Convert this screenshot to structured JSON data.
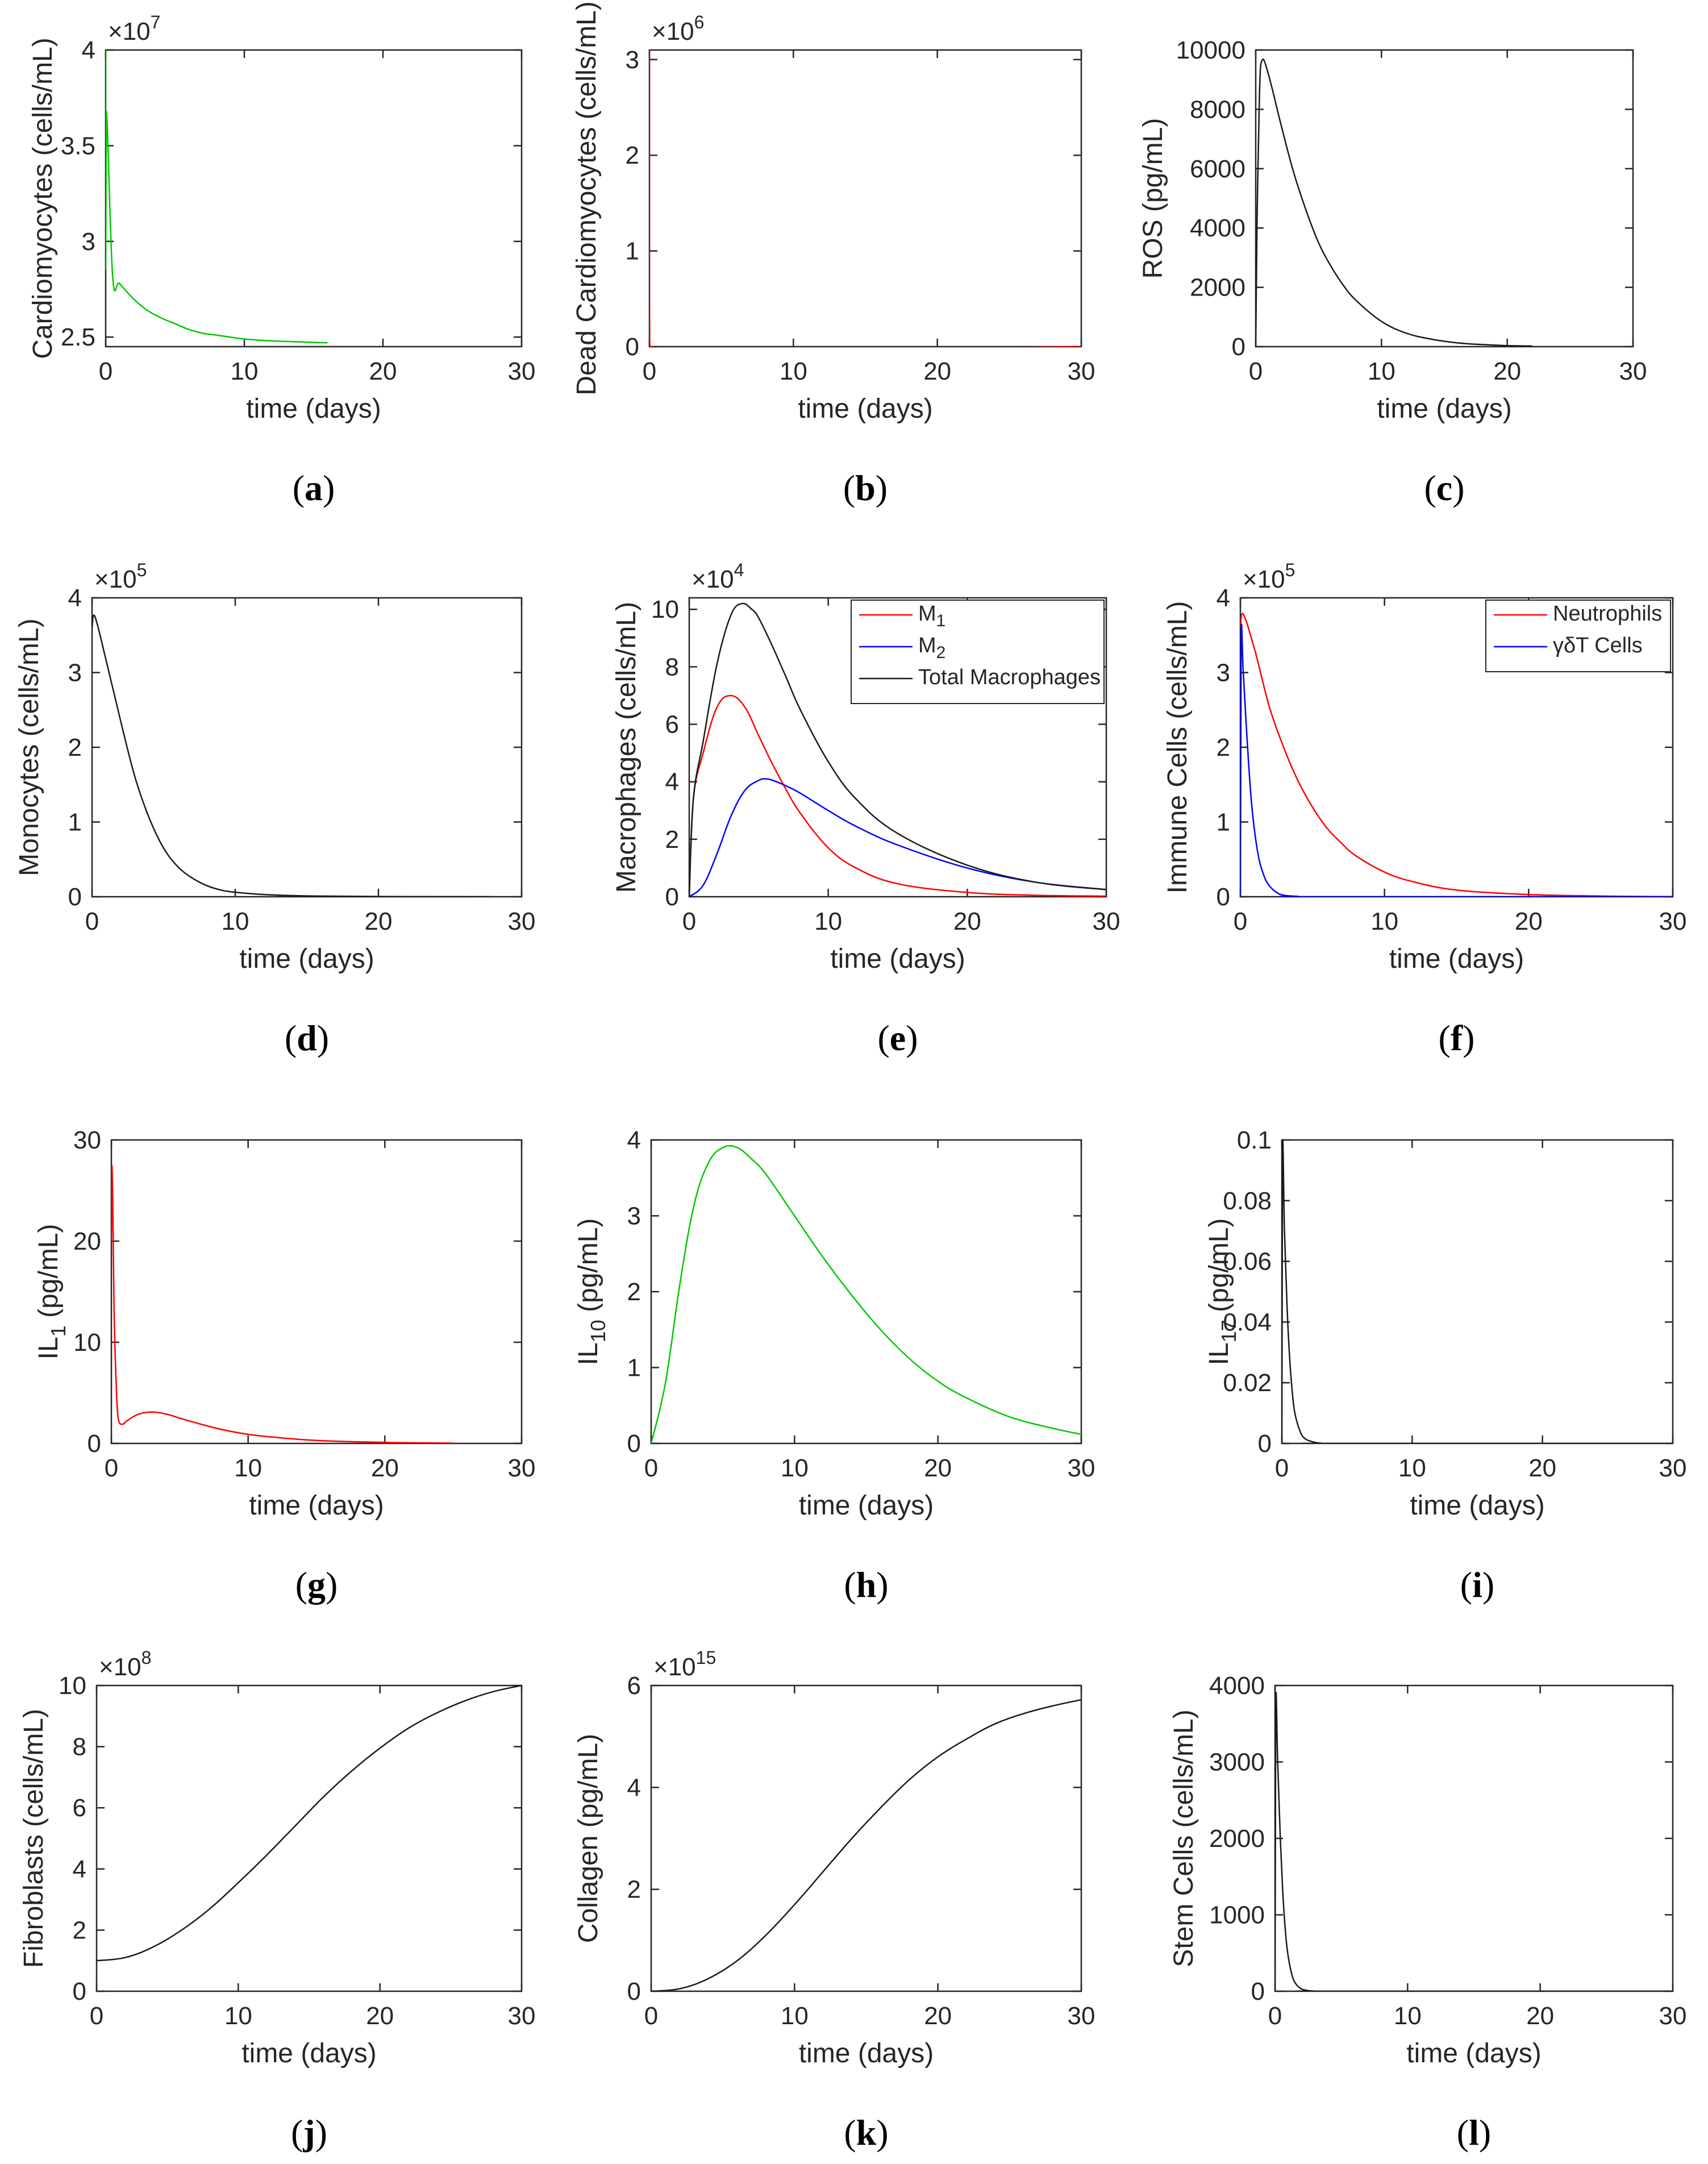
{
  "colors": {
    "green": "#00c800",
    "red": "#ff0000",
    "blue": "#0000ff",
    "black": "#1a1a1a",
    "axis": "#262626"
  },
  "chart_data": [
    {
      "id": "a",
      "type": "line",
      "caption": "a",
      "xlabel": "time (days)",
      "ylabel": "Cardiomyocytes (cells/mL)",
      "xlim": [
        0,
        30
      ],
      "xticks": [
        0,
        10,
        20,
        30
      ],
      "xtick_labels": [
        "0",
        "10",
        "20",
        "30"
      ],
      "ylim": [
        2.45,
        4.0
      ],
      "yticks": [
        2.5,
        3,
        3.5,
        4
      ],
      "ytick_labels": [
        "2.5",
        "3",
        "3.5",
        "4"
      ],
      "exponent": {
        "base": "×10",
        "power": "7"
      },
      "series": [
        {
          "name": "Cardiomyocytes",
          "color": "#00c800",
          "x": [
            0,
            0,
            0.05,
            0.5,
            1,
            2,
            3,
            4,
            5,
            6,
            7,
            8,
            9,
            10,
            12,
            14,
            16
          ],
          "y": [
            4.0,
            2.85,
            3.68,
            2.82,
            2.78,
            2.7,
            2.64,
            2.6,
            2.57,
            2.54,
            2.52,
            2.51,
            2.5,
            2.49,
            2.48,
            2.475,
            2.47
          ]
        }
      ]
    },
    {
      "id": "b",
      "type": "line",
      "caption": "b",
      "xlabel": "time (days)",
      "ylabel": "Dead Cardiomyocytes (cells/mL)",
      "xlim": [
        0,
        30
      ],
      "xticks": [
        0,
        10,
        20,
        30
      ],
      "xtick_labels": [
        "0",
        "10",
        "20",
        "30"
      ],
      "ylim": [
        0,
        3.1
      ],
      "yticks": [
        0,
        1,
        2,
        3
      ],
      "ytick_labels": [
        "0",
        "1",
        "2",
        "3"
      ],
      "exponent": {
        "base": "×10",
        "power": "6"
      },
      "series": [
        {
          "name": "Dead Cardiomyocytes",
          "color": "#ff0000",
          "x": [
            0,
            0,
            0.02,
            30
          ],
          "y": [
            3.1,
            0.5,
            0,
            0
          ]
        }
      ]
    },
    {
      "id": "c",
      "type": "line",
      "caption": "c",
      "xlabel": "time (days)",
      "ylabel": "ROS (pg/mL)",
      "xlim": [
        0,
        30
      ],
      "xticks": [
        0,
        10,
        20,
        30
      ],
      "xtick_labels": [
        "0",
        "10",
        "20",
        "30"
      ],
      "ylim": [
        0,
        10000
      ],
      "yticks": [
        0,
        2000,
        4000,
        6000,
        8000,
        10000
      ],
      "ytick_labels": [
        "0",
        "2000",
        "4000",
        "6000",
        "8000",
        "10000"
      ],
      "series": [
        {
          "name": "ROS",
          "color": "#1a1a1a",
          "x": [
            0,
            0.1,
            0.3,
            0.5,
            1,
            2,
            3,
            4,
            5,
            6,
            7,
            8,
            10,
            12,
            14,
            16,
            18,
            20,
            22
          ],
          "y": [
            0,
            4000,
            8500,
            9650,
            9200,
            7500,
            5900,
            4600,
            3500,
            2700,
            2050,
            1550,
            850,
            450,
            250,
            130,
            70,
            35,
            20
          ]
        }
      ]
    },
    {
      "id": "d",
      "type": "line",
      "caption": "d",
      "xlabel": "time (days)",
      "ylabel": "Monocytes (cells/mL)",
      "xlim": [
        0,
        30
      ],
      "xticks": [
        0,
        10,
        20,
        30
      ],
      "xtick_labels": [
        "0",
        "10",
        "20",
        "30"
      ],
      "ylim": [
        0,
        4
      ],
      "yticks": [
        0,
        1,
        2,
        3,
        4
      ],
      "ytick_labels": [
        "0",
        "1",
        "2",
        "3",
        "4"
      ],
      "exponent": {
        "base": "×10",
        "power": "5"
      },
      "series": [
        {
          "name": "Monocytes",
          "color": "#1a1a1a",
          "x": [
            0,
            0.2,
            1,
            2,
            3,
            4,
            5,
            6,
            7,
            8,
            9,
            10,
            12,
            14,
            16,
            20,
            24,
            28
          ],
          "y": [
            3.6,
            3.75,
            3.15,
            2.35,
            1.6,
            1.05,
            0.65,
            0.4,
            0.25,
            0.15,
            0.09,
            0.06,
            0.03,
            0.015,
            0.008,
            0.003,
            0.001,
            0
          ]
        }
      ]
    },
    {
      "id": "e",
      "type": "line",
      "caption": "e",
      "xlabel": "time (days)",
      "ylabel": "Macrophages (cells/mL)",
      "xlim": [
        0,
        30
      ],
      "xticks": [
        0,
        10,
        20,
        30
      ],
      "xtick_labels": [
        "0",
        "10",
        "20",
        "30"
      ],
      "ylim": [
        0,
        10.4
      ],
      "yticks": [
        0,
        2,
        4,
        6,
        8,
        10
      ],
      "ytick_labels": [
        "0",
        "2",
        "4",
        "6",
        "8",
        "10"
      ],
      "exponent": {
        "base": "×10",
        "power": "4"
      },
      "legend": {
        "position": "top-right",
        "entries": [
          {
            "label": "M",
            "sub": "1",
            "color": "#ff0000"
          },
          {
            "label": "M",
            "sub": "2",
            "color": "#0000ff"
          },
          {
            "label": "Total Macrophages",
            "sub": "",
            "color": "#1a1a1a"
          }
        ]
      },
      "series": [
        {
          "name": "M1",
          "color": "#ff0000",
          "x": [
            0,
            0.3,
            1,
            2,
            3,
            4,
            5,
            6,
            7,
            8,
            10,
            12,
            15,
            20,
            25,
            30
          ],
          "y": [
            0,
            3.4,
            5.0,
            6.6,
            7.0,
            6.6,
            5.6,
            4.6,
            3.7,
            2.9,
            1.7,
            1.0,
            0.45,
            0.15,
            0.05,
            0.02
          ]
        },
        {
          "name": "M2",
          "color": "#0000ff",
          "x": [
            0,
            1,
            2,
            3,
            4,
            5,
            5.5,
            6,
            7,
            8,
            10,
            12,
            15,
            20,
            25,
            30
          ],
          "y": [
            0,
            0.4,
            1.5,
            2.8,
            3.7,
            4.05,
            4.1,
            4.05,
            3.85,
            3.6,
            3.0,
            2.45,
            1.8,
            1.0,
            0.5,
            0.25
          ]
        },
        {
          "name": "Total Macrophages",
          "color": "#1a1a1a",
          "x": [
            0,
            0.3,
            1,
            2,
            3,
            3.8,
            4.5,
            5,
            6,
            7,
            8,
            10,
            12,
            15,
            20,
            25,
            30
          ],
          "y": [
            0,
            3.4,
            5.4,
            8.1,
            9.8,
            10.2,
            10.0,
            9.7,
            8.7,
            7.6,
            6.5,
            4.7,
            3.4,
            2.2,
            1.1,
            0.5,
            0.25
          ]
        }
      ]
    },
    {
      "id": "f",
      "type": "line",
      "caption": "f",
      "xlabel": "time (days)",
      "ylabel": "Immune Cells (cells/mL)",
      "xlim": [
        0,
        30
      ],
      "xticks": [
        0,
        10,
        20,
        30
      ],
      "xtick_labels": [
        "0",
        "10",
        "20",
        "30"
      ],
      "ylim": [
        0,
        4
      ],
      "yticks": [
        0,
        1,
        2,
        3,
        4
      ],
      "ytick_labels": [
        "0",
        "1",
        "2",
        "3",
        "4"
      ],
      "exponent": {
        "base": "×10",
        "power": "5"
      },
      "legend": {
        "position": "top-right",
        "entries": [
          {
            "label": "Neutrophils",
            "sub": "",
            "color": "#ff0000"
          },
          {
            "label": "γδT Cells",
            "sub": "",
            "color": "#0000ff"
          }
        ]
      },
      "series": [
        {
          "name": "Neutrophils",
          "color": "#ff0000",
          "x": [
            0,
            0.2,
            1,
            2,
            3,
            4,
            5,
            6,
            7,
            8,
            10,
            12,
            15,
            20,
            25,
            30
          ],
          "y": [
            3.6,
            3.78,
            3.3,
            2.55,
            2.0,
            1.55,
            1.2,
            0.92,
            0.72,
            0.55,
            0.33,
            0.2,
            0.09,
            0.03,
            0.01,
            0
          ]
        },
        {
          "name": "γδT Cells",
          "color": "#0000ff",
          "x": [
            0,
            0.05,
            0.2,
            0.5,
            0.8,
            1.2,
            1.6,
            2,
            2.5,
            3,
            4,
            5,
            30
          ],
          "y": [
            0,
            3.45,
            3.0,
            2.0,
            1.2,
            0.6,
            0.3,
            0.15,
            0.06,
            0.02,
            0.005,
            0,
            0
          ]
        }
      ]
    },
    {
      "id": "g",
      "type": "line",
      "caption": "g",
      "xlabel": "time (days)",
      "ylabel": "IL",
      "ylabel_sub": "1",
      "ylabel_suffix": " (pg/mL)",
      "xlim": [
        0,
        30
      ],
      "xticks": [
        0,
        10,
        20,
        30
      ],
      "xtick_labels": [
        "0",
        "10",
        "20",
        "30"
      ],
      "ylim": [
        0,
        30
      ],
      "yticks": [
        0,
        10,
        20,
        30
      ],
      "ytick_labels": [
        "0",
        "10",
        "20",
        "30"
      ],
      "series": [
        {
          "name": "IL1",
          "color": "#ff0000",
          "x": [
            0,
            0.05,
            0.1,
            0.2,
            0.35,
            0.5,
            0.8,
            1.2,
            2,
            3,
            4,
            5,
            6,
            8,
            10,
            12,
            15,
            20,
            25
          ],
          "y": [
            20,
            27.5,
            24,
            13,
            6,
            2.5,
            1.9,
            2.3,
            2.9,
            3.1,
            2.9,
            2.5,
            2.1,
            1.4,
            0.9,
            0.6,
            0.3,
            0.1,
            0.03
          ]
        }
      ]
    },
    {
      "id": "h",
      "type": "line",
      "caption": "h",
      "xlabel": "time (days)",
      "ylabel": "IL",
      "ylabel_sub": "10",
      "ylabel_suffix": " (pg/mL)",
      "xlim": [
        0,
        30
      ],
      "xticks": [
        0,
        10,
        20,
        30
      ],
      "xtick_labels": [
        "0",
        "10",
        "20",
        "30"
      ],
      "ylim": [
        0,
        4
      ],
      "yticks": [
        0,
        1,
        2,
        3,
        4
      ],
      "ytick_labels": [
        "0",
        "1",
        "2",
        "3",
        "4"
      ],
      "series": [
        {
          "name": "IL10",
          "color": "#00c800",
          "x": [
            0,
            1,
            2,
            3,
            4,
            5,
            6,
            7,
            8,
            10,
            12,
            14,
            16,
            18,
            20,
            22,
            25,
            28,
            30
          ],
          "y": [
            0,
            0.8,
            2.1,
            3.15,
            3.7,
            3.9,
            3.9,
            3.75,
            3.55,
            3.0,
            2.45,
            1.95,
            1.5,
            1.12,
            0.82,
            0.6,
            0.35,
            0.2,
            0.12
          ]
        }
      ]
    },
    {
      "id": "i",
      "type": "line",
      "caption": "i",
      "xlabel": "time (days)",
      "ylabel": "IL",
      "ylabel_sub": "17",
      "ylabel_suffix": " (pg/mL)",
      "xlim": [
        0,
        30
      ],
      "xticks": [
        0,
        10,
        20,
        30
      ],
      "xtick_labels": [
        "0",
        "10",
        "20",
        "30"
      ],
      "ylim": [
        0,
        0.1
      ],
      "yticks": [
        0,
        0.02,
        0.04,
        0.06,
        0.08,
        0.1
      ],
      "ytick_labels": [
        "0",
        "0.02",
        "0.04",
        "0.06",
        "0.08",
        "0.1"
      ],
      "series": [
        {
          "name": "IL17",
          "color": "#1a1a1a",
          "x": [
            0,
            0.05,
            0.2,
            0.4,
            0.6,
            0.8,
            1,
            1.4,
            1.8,
            2.5,
            3,
            4,
            30
          ],
          "y": [
            0,
            0.097,
            0.07,
            0.045,
            0.028,
            0.017,
            0.01,
            0.004,
            0.0015,
            0.0004,
            0.0001,
            0,
            0
          ]
        }
      ]
    },
    {
      "id": "j",
      "type": "line",
      "caption": "j",
      "xlabel": "time (days)",
      "ylabel": "Fibroblasts (cells/mL)",
      "xlim": [
        0,
        30
      ],
      "xticks": [
        0,
        10,
        20,
        30
      ],
      "xtick_labels": [
        "0",
        "10",
        "20",
        "30"
      ],
      "ylim": [
        0,
        10
      ],
      "yticks": [
        0,
        2,
        4,
        6,
        8,
        10
      ],
      "ytick_labels": [
        "0",
        "2",
        "4",
        "6",
        "8",
        "10"
      ],
      "exponent": {
        "base": "×10",
        "power": "8"
      },
      "series": [
        {
          "name": "Fibroblasts",
          "color": "#1a1a1a",
          "x": [
            0,
            2,
            4,
            6,
            8,
            10,
            12,
            14,
            16,
            18,
            20,
            22,
            24,
            26,
            28,
            30
          ],
          "y": [
            1.0,
            1.1,
            1.45,
            2.0,
            2.7,
            3.55,
            4.45,
            5.4,
            6.35,
            7.2,
            7.95,
            8.6,
            9.1,
            9.5,
            9.8,
            10.0
          ]
        }
      ]
    },
    {
      "id": "k",
      "type": "line",
      "caption": "k",
      "xlabel": "time (days)",
      "ylabel": "Collagen (pg/mL)",
      "xlim": [
        0,
        30
      ],
      "xticks": [
        0,
        10,
        20,
        30
      ],
      "xtick_labels": [
        "0",
        "10",
        "20",
        "30"
      ],
      "ylim": [
        0,
        6
      ],
      "yticks": [
        0,
        2,
        4,
        6
      ],
      "ytick_labels": [
        "0",
        "2",
        "4",
        "6"
      ],
      "exponent": {
        "base": "×10",
        "power": "15"
      },
      "series": [
        {
          "name": "Collagen",
          "color": "#1a1a1a",
          "x": [
            0,
            2,
            4,
            6,
            8,
            10,
            12,
            14,
            16,
            18,
            20,
            22,
            24,
            26,
            28,
            30
          ],
          "y": [
            0,
            0.05,
            0.25,
            0.6,
            1.1,
            1.7,
            2.35,
            3.0,
            3.6,
            4.15,
            4.6,
            4.95,
            5.25,
            5.45,
            5.6,
            5.72
          ]
        }
      ]
    },
    {
      "id": "l",
      "type": "line",
      "caption": "l",
      "xlabel": "time (days)",
      "ylabel": "Stem Cells (cells/mL)",
      "xlim": [
        0,
        30
      ],
      "xticks": [
        0,
        10,
        20,
        30
      ],
      "xtick_labels": [
        "0",
        "10",
        "20",
        "30"
      ],
      "ylim": [
        0,
        4000
      ],
      "yticks": [
        0,
        1000,
        2000,
        3000,
        4000
      ],
      "ytick_labels": [
        "0",
        "1000",
        "2000",
        "3000",
        "4000"
      ],
      "series": [
        {
          "name": "Stem Cells",
          "color": "#1a1a1a",
          "x": [
            0,
            0.05,
            0.2,
            0.4,
            0.6,
            0.8,
            1,
            1.3,
            1.6,
            2,
            2.5,
            3,
            4,
            30
          ],
          "y": [
            0,
            3750,
            3000,
            2000,
            1250,
            750,
            450,
            200,
            90,
            30,
            8,
            2,
            0,
            0
          ]
        }
      ]
    }
  ]
}
